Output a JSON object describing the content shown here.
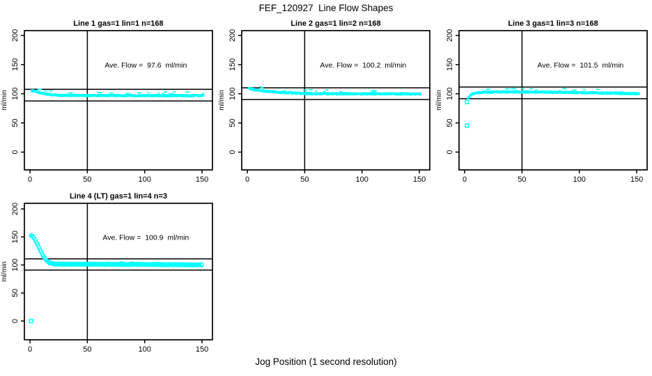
{
  "title": "FEF_120927  Line Flow Shapes",
  "xlabel": "Jog Position (1 second resolution)",
  "point_color": "#00ffff",
  "axis_color": "#000000",
  "background_color": "#ffffff",
  "chart_data": [
    {
      "type": "scatter",
      "title": "Line 1 gas=1 lin=1 n=168",
      "annotation": "Ave. Flow =  97.6  ml/min",
      "ave_flow_ml_min": 97.6,
      "n_runs": 168,
      "ylabel": "ml/min",
      "x_ticks": [
        0,
        50,
        100,
        150
      ],
      "y_ticks": [
        0,
        50,
        100,
        150,
        200
      ],
      "xlim": [
        -4.9,
        159.1
      ],
      "ylim": [
        -30.5,
        208.2
      ],
      "vline_x": 50,
      "hlines": [
        107.6,
        87.6
      ],
      "grid": false,
      "marker": "square",
      "band_halfwidth": 1.4,
      "outliers": [],
      "trend": [
        [
          1.5,
          105.2
        ],
        [
          3,
          104.7
        ],
        [
          5,
          103.7
        ],
        [
          7,
          102.7
        ],
        [
          9,
          101.7
        ],
        [
          11,
          100.7
        ],
        [
          13,
          99.8
        ],
        [
          15,
          99.1
        ],
        [
          18,
          98.3
        ],
        [
          21,
          97.8
        ],
        [
          25,
          97.5
        ],
        [
          30,
          97.3
        ],
        [
          45,
          97.1
        ],
        [
          70,
          97.0
        ],
        [
          100,
          96.9
        ],
        [
          130,
          96.8
        ],
        [
          151,
          96.7
        ]
      ]
    },
    {
      "type": "scatter",
      "title": "Line 2 gas=1 lin=2 n=168",
      "annotation": "Ave. Flow =  100.2  ml/min",
      "ave_flow_ml_min": 100.2,
      "n_runs": 168,
      "ylabel": "ml/min",
      "x_ticks": [
        0,
        50,
        100,
        150
      ],
      "y_ticks": [
        0,
        50,
        100,
        150,
        200
      ],
      "xlim": [
        -4.9,
        159.1
      ],
      "ylim": [
        -30.5,
        208.2
      ],
      "vline_x": 50,
      "hlines": [
        110.2,
        90.2
      ],
      "grid": false,
      "marker": "square",
      "band_halfwidth": 1.4,
      "outliers": [],
      "trend": [
        [
          1.5,
          108.8
        ],
        [
          3,
          108.2
        ],
        [
          5,
          107.4
        ],
        [
          8,
          106.4
        ],
        [
          12,
          105.3
        ],
        [
          16,
          104.4
        ],
        [
          20,
          103.7
        ],
        [
          25,
          102.9
        ],
        [
          30,
          102.3
        ],
        [
          35,
          101.7
        ],
        [
          40,
          101.2
        ],
        [
          45,
          100.8
        ],
        [
          50,
          100.5
        ],
        [
          60,
          100.1
        ],
        [
          80,
          99.9
        ],
        [
          110,
          99.8
        ],
        [
          151,
          99.7
        ]
      ]
    },
    {
      "type": "scatter",
      "title": "Line 3 gas=1 lin=3 n=168",
      "annotation": "Ave. Flow =  101.5  ml/min",
      "ave_flow_ml_min": 101.5,
      "n_runs": 168,
      "ylabel": "ml/min",
      "x_ticks": [
        0,
        50,
        100,
        150
      ],
      "y_ticks": [
        0,
        50,
        100,
        150,
        200
      ],
      "xlim": [
        -4.9,
        159.1
      ],
      "ylim": [
        -30.5,
        208.2
      ],
      "vline_x": 50,
      "hlines": [
        111.5,
        91.5
      ],
      "grid": false,
      "marker": "square",
      "band_halfwidth": 1.5,
      "outliers": [
        [
          2,
          45.5
        ],
        [
          2,
          86
        ]
      ],
      "trend": [
        [
          3,
          92.5
        ],
        [
          4,
          95
        ],
        [
          5,
          97
        ],
        [
          6,
          98.8
        ],
        [
          8,
          100.6
        ],
        [
          10,
          101.5
        ],
        [
          14,
          102.3
        ],
        [
          20,
          102.8
        ],
        [
          30,
          103.1
        ],
        [
          45,
          103.2
        ],
        [
          60,
          103.0
        ],
        [
          80,
          102.6
        ],
        [
          100,
          102.0
        ],
        [
          115,
          101.5
        ],
        [
          130,
          100.9
        ],
        [
          140,
          100.5
        ],
        [
          152,
          100.2
        ]
      ]
    },
    {
      "type": "scatter",
      "title": "Line 4 (LT) gas=1 lin=4 n=3",
      "annotation": "Ave. Flow =  100.9  ml/min",
      "ave_flow_ml_min": 100.9,
      "n_runs": 3,
      "ylabel": "ml/min",
      "x_ticks": [
        0,
        50,
        100,
        150
      ],
      "y_ticks": [
        0,
        50,
        100,
        150,
        200
      ],
      "xlim": [
        -4.9,
        159.1
      ],
      "ylim": [
        -33.5,
        210.0
      ],
      "vline_x": 50,
      "hlines": [
        110.9,
        90.9
      ],
      "grid": false,
      "marker": "circle",
      "band_halfwidth": 1.2,
      "outliers": [
        [
          1,
          0
        ]
      ],
      "trend": [
        [
          1,
          153
        ],
        [
          2,
          151.5
        ],
        [
          3,
          149.3
        ],
        [
          4,
          146.3
        ],
        [
          5,
          142.8
        ],
        [
          6,
          138.8
        ],
        [
          7,
          134.6
        ],
        [
          8,
          130.3
        ],
        [
          9,
          126.2
        ],
        [
          10,
          122.2
        ],
        [
          11,
          118.4
        ],
        [
          12,
          114.9
        ],
        [
          13,
          111.8
        ],
        [
          14,
          109.2
        ],
        [
          15,
          107.1
        ],
        [
          16,
          105.4
        ],
        [
          17,
          104.2
        ],
        [
          18,
          103.3
        ],
        [
          20,
          102.3
        ],
        [
          22,
          101.8
        ],
        [
          25,
          101.6
        ],
        [
          30,
          101.4
        ],
        [
          45,
          101.3
        ],
        [
          60,
          101.2
        ],
        [
          80,
          101.0
        ],
        [
          100,
          100.9
        ],
        [
          120,
          100.7
        ],
        [
          135,
          100.5
        ],
        [
          150,
          100.2
        ]
      ]
    }
  ]
}
